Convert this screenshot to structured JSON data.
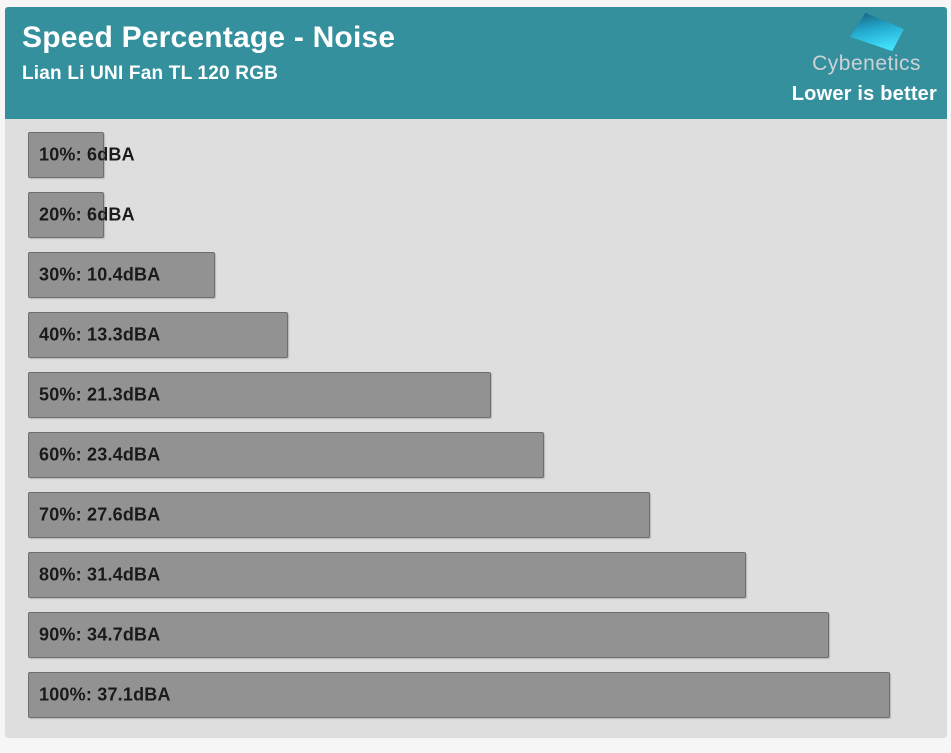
{
  "header": {
    "title": "Speed Percentage - Noise",
    "subtitle": "Lian Li UNI Fan TL 120 RGB",
    "brand": "Cybenetics",
    "note": "Lower is better"
  },
  "colors": {
    "header_bg": "#35909E",
    "plot_bg": "#DEDEDE",
    "bar_fill": "#929292",
    "bar_border": "#6E6E6E",
    "label_text": "#1A1A1A",
    "logo_gradient_top": "#17637F",
    "logo_gradient_bottom": "#41E2FE"
  },
  "chart_data": {
    "type": "bar",
    "orientation": "horizontal",
    "title": "Speed Percentage - Noise",
    "subtitle": "Lian Li UNI Fan TL 120 RGB",
    "annotation": "Lower is better",
    "unit": "dBA",
    "categories": [
      "10%",
      "20%",
      "30%",
      "40%",
      "50%",
      "60%",
      "70%",
      "80%",
      "90%",
      "100%"
    ],
    "values": [
      6,
      6,
      10.4,
      13.3,
      21.3,
      23.4,
      27.6,
      31.4,
      34.7,
      37.1
    ],
    "labels": [
      "10%: 6dBA",
      "20%: 6dBA",
      "30%: 10.4dBA",
      "40%: 13.3dBA",
      "50%: 21.3dBA",
      "60%: 23.4dBA",
      "70%: 27.6dBA",
      "80%: 31.4dBA",
      "90%: 34.7dBA",
      "100%: 37.1dBA"
    ],
    "xlim": [
      3,
      37.1
    ],
    "grid": false,
    "legend": false
  }
}
